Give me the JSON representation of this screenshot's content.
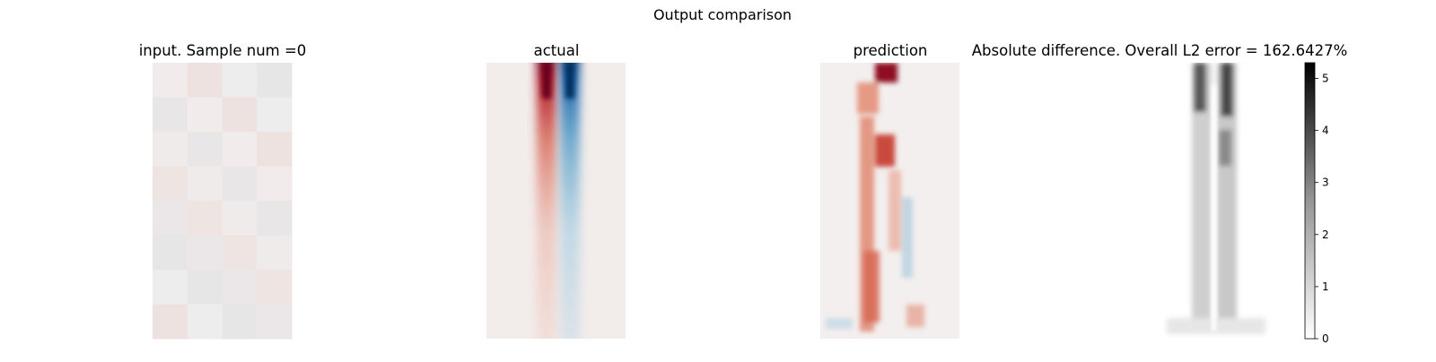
{
  "figure": {
    "suptitle": "Output comparison"
  },
  "chart_data": [
    {
      "type": "heatmap",
      "title": "input. Sample num =0",
      "colormap": "diverging red-white-blue",
      "grid": false,
      "columns": 4,
      "rows": 8
    },
    {
      "type": "heatmap",
      "title": "actual",
      "colormap": "diverging red-white-blue",
      "grid": false
    },
    {
      "type": "heatmap",
      "title": "prediction",
      "colormap": "diverging red-white-blue",
      "grid": false
    },
    {
      "type": "heatmap",
      "title": "Absolute difference. Overall L2 error = 162.6427%",
      "colormap": "greys",
      "grid": false,
      "colorbar": {
        "ticks": [
          "0",
          "1",
          "2",
          "3",
          "4",
          "5"
        ],
        "range": [
          0,
          5.3
        ]
      }
    }
  ]
}
